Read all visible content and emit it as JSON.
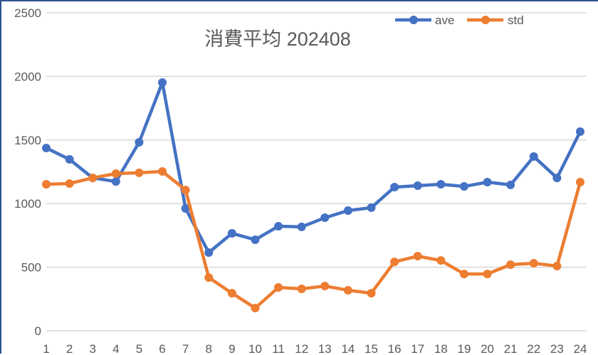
{
  "chart_data": {
    "type": "line",
    "title": "消費平均 202408",
    "xlabel": "",
    "ylabel": "",
    "x": [
      1,
      2,
      3,
      4,
      5,
      6,
      7,
      8,
      9,
      10,
      11,
      12,
      13,
      14,
      15,
      16,
      17,
      18,
      19,
      20,
      21,
      22,
      23,
      24
    ],
    "categories": [
      "1",
      "2",
      "3",
      "4",
      "5",
      "6",
      "7",
      "8",
      "9",
      "10",
      "11",
      "12",
      "13",
      "14",
      "15",
      "16",
      "17",
      "18",
      "19",
      "20",
      "21",
      "22",
      "23",
      "24"
    ],
    "series": [
      {
        "name": "ave",
        "color": "#4472c4",
        "values": [
          1437,
          1348,
          1202,
          1174,
          1482,
          1952,
          962,
          615,
          766,
          716,
          822,
          817,
          889,
          945,
          968,
          1130,
          1141,
          1152,
          1135,
          1169,
          1147,
          1370,
          1202,
          1566
        ]
      },
      {
        "name": "std",
        "color": "#ed7d31",
        "values": [
          1152,
          1158,
          1202,
          1236,
          1242,
          1253,
          1107,
          419,
          296,
          179,
          341,
          330,
          352,
          319,
          296,
          542,
          587,
          553,
          447,
          447,
          520,
          531,
          509,
          1169
        ]
      }
    ],
    "ylim": [
      0,
      2500
    ],
    "yticks": [
      0,
      500,
      1000,
      1500,
      2000,
      2500
    ],
    "grid": true,
    "legend_position": "top-right"
  },
  "frame": {
    "border_color": "#2f528f"
  },
  "legend": [
    {
      "label": "ave",
      "color": "#4472c4"
    },
    {
      "label": "std",
      "color": "#ed7d31"
    }
  ]
}
